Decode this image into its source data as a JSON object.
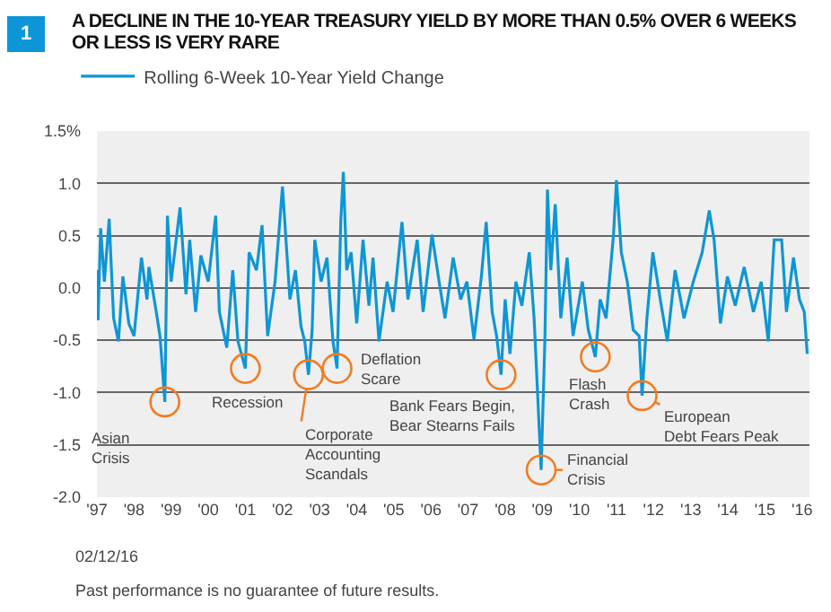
{
  "chart_data": {
    "type": "line",
    "title": "A DECLINE IN THE 10-YEAR TREASURY YIELD BY MORE THAN 0.5% OVER 6 WEEKS OR LESS IS VERY RARE",
    "series": [
      {
        "name": "Rolling 6-Week 10-Year Yield Change",
        "color": "#0d96d6",
        "x": [
          1997.0,
          1997.03,
          1997.1,
          1997.2,
          1997.33,
          1997.45,
          1997.58,
          1997.7,
          1997.86,
          1998.0,
          1998.2,
          1998.35,
          1998.4,
          1998.6,
          1998.7,
          1998.83,
          1998.9,
          1999.0,
          1999.24,
          1999.4,
          1999.5,
          1999.66,
          1999.8,
          2000.0,
          2000.2,
          2000.3,
          2000.5,
          2000.66,
          2000.8,
          2001.0,
          2001.1,
          2001.3,
          2001.45,
          2001.6,
          2001.8,
          2002.0,
          2002.2,
          2002.35,
          2002.5,
          2002.6,
          2002.7,
          2002.8,
          2002.87,
          2003.04,
          2003.2,
          2003.36,
          2003.47,
          2003.57,
          2003.64,
          2003.73,
          2003.85,
          2004.0,
          2004.17,
          2004.33,
          2004.44,
          2004.6,
          2004.82,
          2004.98,
          2005.22,
          2005.38,
          2005.63,
          2005.79,
          2006.03,
          2006.22,
          2006.38,
          2006.6,
          2006.8,
          2006.97,
          2007.16,
          2007.36,
          2007.49,
          2007.65,
          2007.77,
          2007.89,
          2008.0,
          2008.13,
          2008.29,
          2008.45,
          2008.65,
          2008.78,
          2008.97,
          2009.07,
          2009.14,
          2009.23,
          2009.35,
          2009.5,
          2009.67,
          2009.83,
          2010.08,
          2010.24,
          2010.43,
          2010.56,
          2010.72,
          2010.92,
          2011.0,
          2011.13,
          2011.29,
          2011.45,
          2011.61,
          2011.69,
          2011.82,
          2011.98,
          2012.18,
          2012.37,
          2012.58,
          2012.82,
          2013.07,
          2013.31,
          2013.5,
          2013.63,
          2013.8,
          2013.99,
          2014.2,
          2014.44,
          2014.69,
          2014.9,
          2015.09,
          2015.25,
          2015.45,
          2015.58,
          2015.77,
          2015.93,
          2016.06,
          2016.14
        ],
        "values": [
          0.17,
          -0.31,
          0.57,
          0.06,
          0.66,
          -0.29,
          -0.51,
          0.11,
          -0.34,
          -0.46,
          0.29,
          -0.11,
          0.2,
          -0.23,
          -0.46,
          -1.09,
          0.69,
          0.06,
          0.77,
          -0.06,
          0.46,
          -0.23,
          0.31,
          0.06,
          0.69,
          -0.23,
          -0.57,
          0.17,
          -0.51,
          -0.77,
          0.34,
          0.17,
          0.6,
          -0.46,
          0.06,
          0.97,
          -0.11,
          0.17,
          -0.37,
          -0.51,
          -0.83,
          -0.4,
          0.46,
          0.06,
          0.29,
          -0.51,
          -0.77,
          0.63,
          1.11,
          0.17,
          0.34,
          -0.34,
          0.46,
          -0.17,
          0.29,
          -0.51,
          0.06,
          -0.23,
          0.63,
          -0.11,
          0.46,
          -0.23,
          0.51,
          0.06,
          -0.29,
          0.29,
          -0.11,
          0.06,
          -0.49,
          0.11,
          0.63,
          -0.23,
          -0.46,
          -0.83,
          -0.11,
          -0.63,
          0.06,
          -0.17,
          0.34,
          -0.29,
          -1.74,
          -0.51,
          0.94,
          0.17,
          0.8,
          -0.29,
          0.29,
          -0.46,
          0.06,
          -0.4,
          -0.66,
          -0.11,
          -0.29,
          0.51,
          1.03,
          0.34,
          0.06,
          -0.4,
          -0.46,
          -1.03,
          -0.29,
          0.34,
          -0.11,
          -0.51,
          0.17,
          -0.29,
          0.06,
          0.34,
          0.74,
          0.46,
          -0.34,
          0.11,
          -0.17,
          0.2,
          -0.23,
          0.06,
          -0.51,
          0.46,
          0.46,
          -0.23,
          0.29,
          -0.11,
          -0.23,
          -0.63
        ]
      }
    ],
    "xlim": [
      1997,
      2016.2
    ],
    "xticks": [
      {
        "value": 1997,
        "label": "'97"
      },
      {
        "value": 1998,
        "label": "'98"
      },
      {
        "value": 1999,
        "label": "'99"
      },
      {
        "value": 2000,
        "label": "'00"
      },
      {
        "value": 2001,
        "label": "'01"
      },
      {
        "value": 2002,
        "label": "'02"
      },
      {
        "value": 2003,
        "label": "'03"
      },
      {
        "value": 2004,
        "label": "'04"
      },
      {
        "value": 2005,
        "label": "'05"
      },
      {
        "value": 2006,
        "label": "'06"
      },
      {
        "value": 2007,
        "label": "'07"
      },
      {
        "value": 2008,
        "label": "'08"
      },
      {
        "value": 2009,
        "label": "'09"
      },
      {
        "value": 2010,
        "label": "'10"
      },
      {
        "value": 2011,
        "label": "'11"
      },
      {
        "value": 2012,
        "label": "'12"
      },
      {
        "value": 2013,
        "label": "'13"
      },
      {
        "value": 2014,
        "label": "'14"
      },
      {
        "value": 2015,
        "label": "'15"
      },
      {
        "value": 2016,
        "label": "'16"
      }
    ],
    "ylim": [
      -2.0,
      1.5
    ],
    "yticks": [
      {
        "value": -2.0,
        "label": "-2.0"
      },
      {
        "value": -1.5,
        "label": "-1.5"
      },
      {
        "value": -1.0,
        "label": "-1.0"
      },
      {
        "value": -0.5,
        "label": "-0.5"
      },
      {
        "value": 0,
        "label": "0.0"
      },
      {
        "value": 0.5,
        "label": "0.5"
      },
      {
        "value": 1.0,
        "label": "1.0"
      },
      {
        "value": 1.5,
        "label": "1.5%"
      }
    ],
    "grid": "y",
    "legend": "top left",
    "annotations": [
      "1",
      {
        "text": "Asian\nCrisis",
        "x": 1998.83,
        "y": -1.09
      },
      {
        "text": "Recession",
        "x": 2001.0,
        "y": -0.77
      },
      {
        "text": "Corporate\nAccounting\nScandals",
        "x": 2002.7,
        "y": -0.83
      },
      {
        "text": "Deflation\nScare",
        "x": 2003.47,
        "y": -0.77
      },
      {
        "text": "Bank Fears Begin,\nBear Stearns Fails",
        "x": 2007.89,
        "y": -0.83
      },
      {
        "text": "Financial\nCrisis",
        "x": 2008.97,
        "y": -1.74
      },
      {
        "text": "Flash\nCrash",
        "x": 2010.43,
        "y": -0.66
      },
      {
        "text": "European\nDebt Fears Peak",
        "x": 2011.69,
        "y": -1.03
      },
      "02/12/16",
      "Past performance is no guarantee of future results."
    ]
  }
}
